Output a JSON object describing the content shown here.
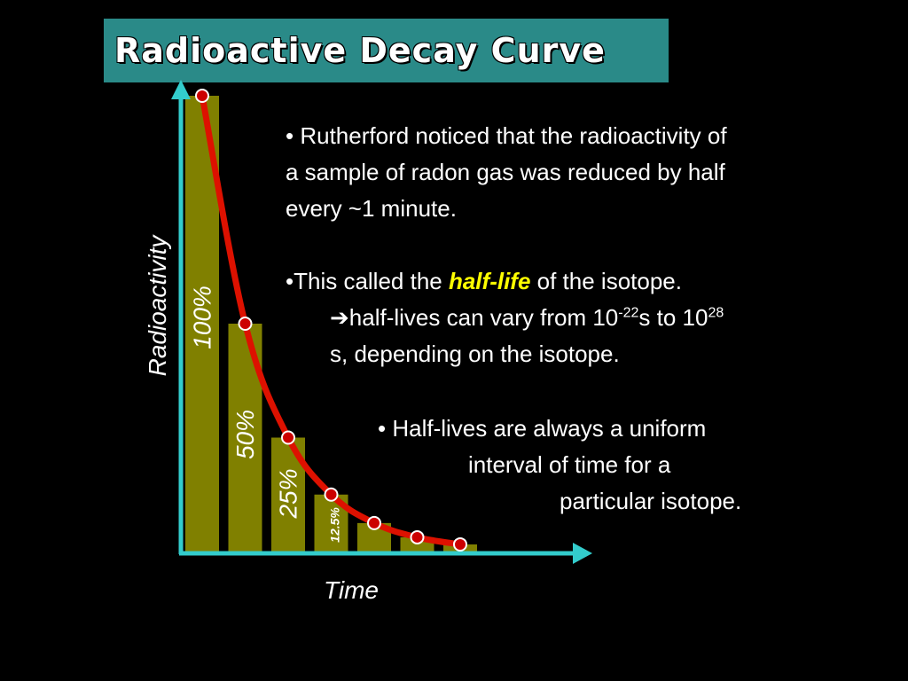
{
  "slide": {
    "title": "Radioactive Decay Curve"
  },
  "chart_data": {
    "type": "bar",
    "ylabel": "Radioactivity",
    "xlabel": "Time",
    "ylim": [
      0,
      100
    ],
    "values": [
      100,
      50,
      25,
      12.5,
      6.25,
      3.125,
      1.5625
    ],
    "bar_labels": [
      "100%",
      "50%",
      "25%",
      "12.5%",
      "",
      "",
      ""
    ],
    "curve": "exponential decay through bar tops",
    "colors": {
      "bars": "#808000",
      "curve": "#dd1100",
      "axes": "#33cccc",
      "title_bg": "#2a8a88"
    }
  },
  "bullets": {
    "b1_line1": "• Rutherford noticed that the radioactivity of",
    "b1_line2": "a sample of radon gas was reduced by half",
    "b1_line3": "every ~1 minute.",
    "b2_pre": "•This called the ",
    "b2_highlight": "half-life",
    "b2_post": " of the isotope.",
    "b3_arrow": "➔",
    "b3_pre": "half-lives can vary from 10",
    "b3_exp1": "-22",
    "b3_mid": "s to 10",
    "b3_exp2": "28",
    "b3_line2": "s, depending on the isotope.",
    "b4_line1": "• Half-lives are always a uniform",
    "b4_line2": "interval of time for a",
    "b4_line3": "particular isotope."
  }
}
